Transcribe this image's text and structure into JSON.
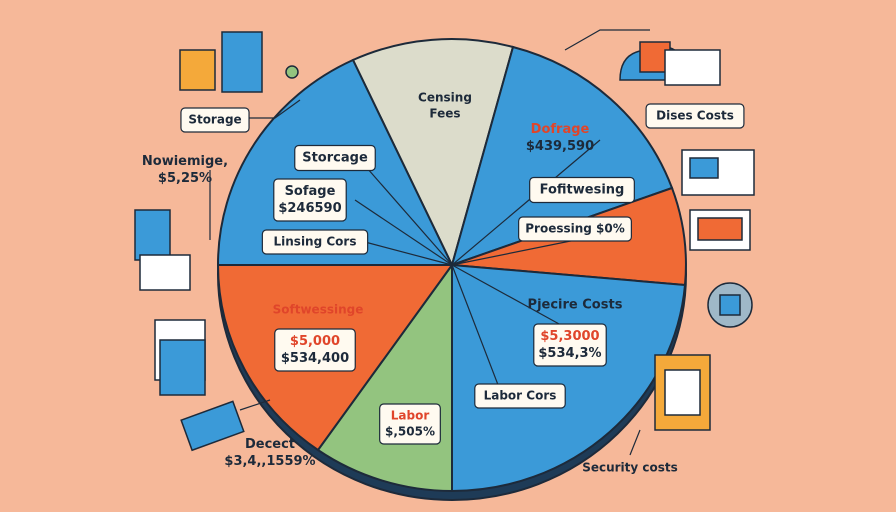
{
  "labels": [
    {
      "lines": [
        "Storage"
      ]
    },
    {
      "lines": [
        "Nowiemige,",
        "$5,25%"
      ]
    },
    {
      "lines": [
        "Storcage"
      ]
    },
    {
      "lines": [
        "Sofage",
        "$246590"
      ]
    },
    {
      "lines": [
        "Linsing Cors"
      ]
    },
    {
      "lines": [
        "Censing",
        "Fees"
      ]
    },
    {
      "lines": [
        "Dofrage",
        "$439,590"
      ]
    },
    {
      "lines": [
        "Dises Costs"
      ]
    },
    {
      "lines": [
        "Fofitwesing"
      ]
    },
    {
      "lines": [
        "Proessing $0%"
      ]
    },
    {
      "lines": [
        "Softwessinge"
      ]
    },
    {
      "lines": [
        "$5,000",
        "$534,400"
      ]
    },
    {
      "lines": [
        "Pjecire Costs"
      ]
    },
    {
      "lines": [
        "$5,3000",
        "$534,3%"
      ]
    },
    {
      "lines": [
        "Labor Cors"
      ]
    },
    {
      "lines": [
        "Labor",
        "$,505%"
      ]
    },
    {
      "lines": [
        "Decect",
        "$3,4,,1559%"
      ]
    },
    {
      "lines": [
        "Security costs"
      ]
    }
  ]
}
